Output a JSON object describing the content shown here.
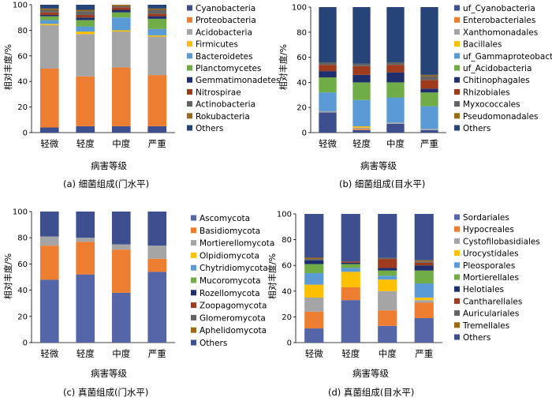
{
  "chart_data": [
    {
      "type": "bar",
      "stacked": true,
      "caption": "(a)  细菌组成(门水平)",
      "xlabel": "病害等级",
      "ylabel": "相对丰度/%",
      "ylim": [
        0,
        100
      ],
      "yticks": [
        0,
        20,
        40,
        60,
        80,
        100
      ],
      "categories": [
        "轻微",
        "轻度",
        "中度",
        "严重"
      ],
      "legend_position": "right",
      "series": [
        {
          "name": "Cyanobacteria",
          "color": "#3d4f8e",
          "values": [
            4,
            5,
            5,
            5
          ]
        },
        {
          "name": "Proteobacteria",
          "color": "#ed7d31",
          "values": [
            46,
            39,
            46,
            40
          ]
        },
        {
          "name": "Acidobacteria",
          "color": "#a5a5a5",
          "values": [
            34,
            33,
            28,
            30
          ]
        },
        {
          "name": "Firmicutes",
          "color": "#ffc000",
          "values": [
            1,
            2,
            1,
            1
          ]
        },
        {
          "name": "Bacteroidetes",
          "color": "#5b9bd5",
          "values": [
            3,
            4,
            10,
            5
          ]
        },
        {
          "name": "Planctomycetes",
          "color": "#70ad47",
          "values": [
            3,
            5,
            4,
            8
          ]
        },
        {
          "name": "Gemmatimonadetes",
          "color": "#1f2f6e",
          "values": [
            1,
            2,
            2,
            2
          ]
        },
        {
          "name": "Nitrospirae",
          "color": "#9e3b1c",
          "values": [
            2,
            2,
            2,
            2
          ]
        },
        {
          "name": "Actinobacteria",
          "color": "#636363",
          "values": [
            2,
            3,
            1,
            3
          ]
        },
        {
          "name": "Rokubacteria",
          "color": "#9c6a12",
          "values": [
            1,
            1,
            1,
            1
          ]
        },
        {
          "name": "Others",
          "color": "#264478",
          "values": [
            3,
            4,
            0,
            3
          ]
        }
      ]
    },
    {
      "type": "bar",
      "stacked": true,
      "caption": "(b)  细菌组成(目水平)",
      "xlabel": "病害等级",
      "ylabel": "相对丰度/%",
      "ylim": [
        0,
        100
      ],
      "yticks": [
        0,
        20,
        40,
        60,
        80,
        100
      ],
      "categories": [
        "轻微",
        "轻度",
        "中度",
        "严重"
      ],
      "legend_position": "right",
      "series": [
        {
          "name": "uf_Cyanobacteria",
          "color": "#3d4f8e",
          "values": [
            16,
            2,
            7,
            2
          ]
        },
        {
          "name": "Enterobacteriales",
          "color": "#ed7d31",
          "values": [
            0,
            1,
            0,
            0
          ]
        },
        {
          "name": "Xanthomonadales",
          "color": "#a5a5a5",
          "values": [
            1,
            1,
            1,
            1
          ]
        },
        {
          "name": "Bacillales",
          "color": "#ffc000",
          "values": [
            0,
            1,
            0,
            0
          ]
        },
        {
          "name": "uf_Gammaproteobacteria",
          "color": "#5b9bd5",
          "values": [
            15,
            21,
            20,
            18
          ]
        },
        {
          "name": "uf_Acidobacteria",
          "color": "#70ad47",
          "values": [
            12,
            14,
            12,
            11
          ]
        },
        {
          "name": "Chitinophagales",
          "color": "#1f2f6e",
          "values": [
            5,
            6,
            8,
            3
          ]
        },
        {
          "name": "Rhizobiales",
          "color": "#9e3b1c",
          "values": [
            5,
            7,
            6,
            7
          ]
        },
        {
          "name": "Myxococcales",
          "color": "#636363",
          "values": [
            2,
            2,
            2,
            3
          ]
        },
        {
          "name": "Pseudomonadales",
          "color": "#9c6a12",
          "values": [
            0,
            0,
            0,
            1
          ]
        },
        {
          "name": "Others",
          "color": "#264478",
          "values": [
            44,
            45,
            44,
            54
          ]
        }
      ]
    },
    {
      "type": "bar",
      "stacked": true,
      "caption": "(c)  真菌组成(门水平)",
      "xlabel": "病害等级",
      "ylabel": "相对丰度/%",
      "ylim": [
        0,
        100
      ],
      "yticks": [
        0,
        20,
        40,
        60,
        80,
        100
      ],
      "categories": [
        "轻微",
        "轻度",
        "中度",
        "严重"
      ],
      "legend_position": "right",
      "series": [
        {
          "name": "Ascomycota",
          "color": "#5465a8",
          "values": [
            48,
            52,
            38,
            54
          ]
        },
        {
          "name": "Basidiomycota",
          "color": "#ed7d31",
          "values": [
            26,
            25,
            33,
            10
          ]
        },
        {
          "name": "Mortierellomycota",
          "color": "#a5a5a5",
          "values": [
            7,
            3,
            4,
            10
          ]
        },
        {
          "name": "Olpidiomycota",
          "color": "#ffc000",
          "values": [
            0,
            0,
            0,
            0
          ]
        },
        {
          "name": "Chytridiomycota",
          "color": "#5b9bd5",
          "values": [
            0,
            0,
            0,
            0
          ]
        },
        {
          "name": "Mucoromycota",
          "color": "#70ad47",
          "values": [
            0,
            0,
            0,
            0
          ]
        },
        {
          "name": "Rozellomycota",
          "color": "#1f2f6e",
          "values": [
            0,
            0,
            0,
            0
          ]
        },
        {
          "name": "Zoopagomycota",
          "color": "#9e3b1c",
          "values": [
            0,
            0,
            0,
            0
          ]
        },
        {
          "name": "Glomeromycota",
          "color": "#636363",
          "values": [
            0,
            0,
            0,
            0
          ]
        },
        {
          "name": "Aphelidomycota",
          "color": "#9c6a12",
          "values": [
            0,
            0,
            0,
            0
          ]
        },
        {
          "name": "Others",
          "color": "#3d4f8e",
          "values": [
            19,
            20,
            25,
            26
          ]
        }
      ]
    },
    {
      "type": "bar",
      "stacked": true,
      "caption": "(d)  真菌组成(目水平)",
      "xlabel": "病害等级",
      "ylabel": "相对丰度/%",
      "ylim": [
        0,
        100
      ],
      "yticks": [
        0,
        20,
        40,
        60,
        80,
        100
      ],
      "categories": [
        "轻微",
        "轻度",
        "中度",
        "严重"
      ],
      "legend_position": "right",
      "series": [
        {
          "name": "Sordariales",
          "color": "#5465a8",
          "values": [
            11,
            33,
            13,
            19
          ]
        },
        {
          "name": "Hypocreales",
          "color": "#ed7d31",
          "values": [
            13,
            10,
            12,
            12
          ]
        },
        {
          "name": "Cystofilobasidiales",
          "color": "#a5a5a5",
          "values": [
            11,
            0,
            15,
            2
          ]
        },
        {
          "name": "Urocystidales",
          "color": "#ffc000",
          "values": [
            10,
            12,
            9,
            2
          ]
        },
        {
          "name": "Pleosporales",
          "color": "#5b9bd5",
          "values": [
            9,
            3,
            3,
            11
          ]
        },
        {
          "name": "Mortierellales",
          "color": "#70ad47",
          "values": [
            7,
            3,
            4,
            10
          ]
        },
        {
          "name": "Helotiales",
          "color": "#1f2f6e",
          "values": [
            3,
            1,
            2,
            4
          ]
        },
        {
          "name": "Cantharellales",
          "color": "#9e3b1c",
          "values": [
            0,
            1,
            7,
            2
          ]
        },
        {
          "name": "Auriculariales",
          "color": "#636363",
          "values": [
            1,
            0,
            1,
            1
          ]
        },
        {
          "name": "Tremellales",
          "color": "#9c6a12",
          "values": [
            1,
            0,
            0,
            1
          ]
        },
        {
          "name": "Others",
          "color": "#3d4f8e",
          "values": [
            34,
            37,
            34,
            36
          ]
        }
      ]
    }
  ]
}
